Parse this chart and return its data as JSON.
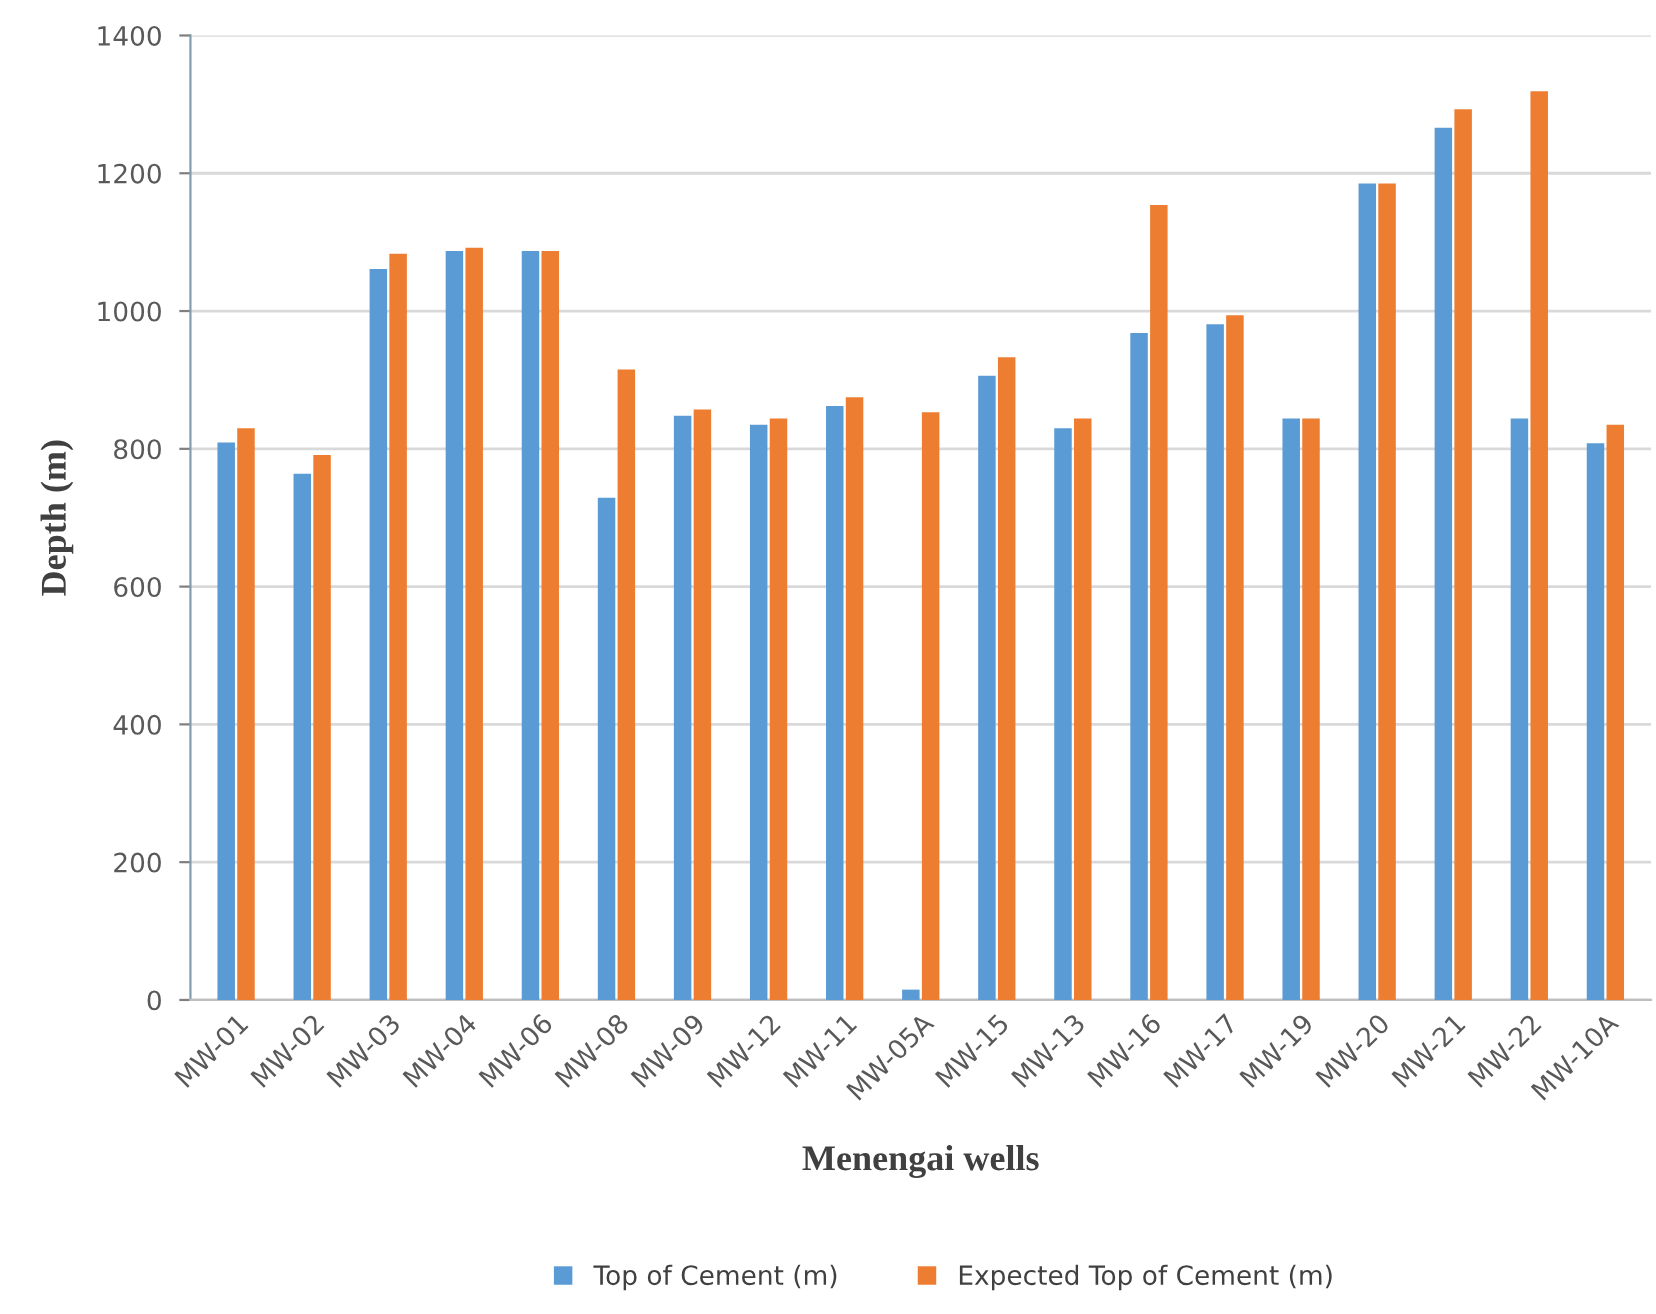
{
  "chart_data": {
    "type": "bar",
    "xlabel": "Menengai wells",
    "ylabel": "Depth (m)",
    "categories": [
      "MW-01",
      "MW-02",
      "MW-03",
      "MW-04",
      "MW-06",
      "MW-08",
      "MW-09",
      "MW-12",
      "MW-11",
      "MW-05A",
      "MW-15",
      "MW-13",
      "MW-16",
      "MW-17",
      "MW-19",
      "MW-20",
      "MW-21",
      "MW-22",
      "MW-10A"
    ],
    "series": [
      {
        "name": "Top of Cement (m)",
        "color": "#5b9bd5",
        "values": [
          809,
          764,
          1061,
          1087,
          1087,
          729,
          848,
          835,
          862,
          15,
          906,
          830,
          968,
          981,
          844,
          1185,
          1266,
          844,
          808
        ]
      },
      {
        "name": "Expected Top of Cement (m)",
        "color": "#ed7d31",
        "values": [
          830,
          791,
          1083,
          1092,
          1087,
          915,
          857,
          844,
          875,
          853,
          933,
          844,
          1154,
          994,
          844,
          1185,
          1293,
          1319,
          835
        ]
      }
    ],
    "ylim": [
      0,
      1400
    ],
    "yticks": [
      0,
      200,
      400,
      600,
      800,
      1000,
      1200,
      1400
    ],
    "grid": "y",
    "legend": "bottom"
  }
}
